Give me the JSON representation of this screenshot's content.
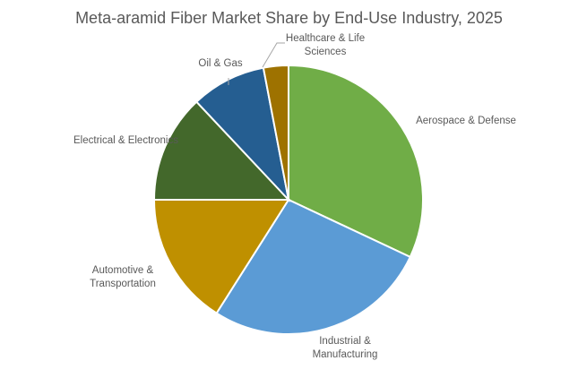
{
  "chart_data": {
    "type": "pie",
    "title": "Meta-aramid Fiber Market Share by End-Use Industry, 2025",
    "categories": [
      "Aerospace & Defense",
      "Industrial & Manufacturing",
      "Automotive & Transportation",
      "Electrical & Electronics",
      "Oil & Gas",
      "Healthcare & Life Sciences"
    ],
    "values": [
      32,
      27,
      16,
      13,
      9,
      3
    ],
    "unit": "%",
    "colors": [
      "#70AD47",
      "#5B9BD5",
      "#BF9000",
      "#43682B",
      "#255E91",
      "#9E7200"
    ],
    "start_angle": "12 o'clock, clockwise",
    "legend": "none (data labels outside)"
  }
}
